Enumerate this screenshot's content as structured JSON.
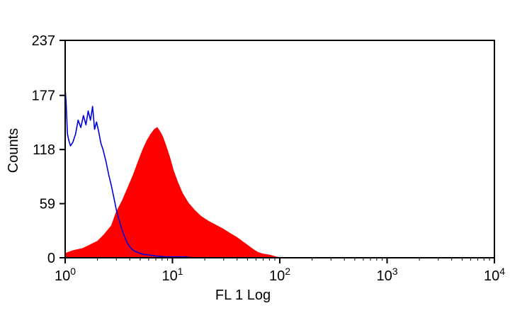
{
  "chart_data": {
    "type": "area",
    "xlabel": "FL 1 Log",
    "ylabel": "Counts",
    "x_scale": "log",
    "xlim": [
      1,
      10000
    ],
    "ylim": [
      0,
      237
    ],
    "y_ticks": [
      {
        "value": 0,
        "label": "0"
      },
      {
        "value": 59,
        "label": "59"
      },
      {
        "value": 118,
        "label": "118"
      },
      {
        "value": 177,
        "label": "177"
      },
      {
        "value": 237,
        "label": "237"
      }
    ],
    "x_ticks": [
      {
        "value": 1,
        "base": "10",
        "exp": "0"
      },
      {
        "value": 10,
        "base": "10",
        "exp": "1"
      },
      {
        "value": 100,
        "base": "10",
        "exp": "2"
      },
      {
        "value": 1000,
        "base": "10",
        "exp": "3"
      },
      {
        "value": 10000,
        "base": "10",
        "exp": "4"
      }
    ],
    "series": [
      {
        "style": "filled",
        "color": "#ff0000",
        "x": [
          1.02,
          1.2,
          1.45,
          1.7,
          2.0,
          2.3,
          2.7,
          3.0,
          3.4,
          3.8,
          4.3,
          4.8,
          5.3,
          5.8,
          6.3,
          6.8,
          7.2,
          7.6,
          8.1,
          8.7,
          9.4,
          10.2,
          11.2,
          12.4,
          14.0,
          16.0,
          18.5,
          21.5,
          25.0,
          29.0,
          34.0,
          40.0,
          47.0,
          55.0,
          62.0,
          70.0,
          80.0,
          92.0,
          102.0
        ],
        "y": [
          5,
          8,
          10,
          14,
          18,
          25,
          35,
          50,
          62,
          75,
          90,
          105,
          118,
          128,
          135,
          140,
          142,
          138,
          132,
          122,
          110,
          95,
          82,
          70,
          60,
          52,
          45,
          40,
          36,
          32,
          27,
          22,
          16,
          10,
          6,
          4,
          3,
          1,
          0
        ]
      },
      {
        "style": "line",
        "color": "#0000dd",
        "x": [
          1.0,
          1.02,
          1.05,
          1.08,
          1.12,
          1.18,
          1.25,
          1.32,
          1.4,
          1.48,
          1.56,
          1.64,
          1.72,
          1.8,
          1.88,
          1.96,
          2.05,
          2.15,
          2.25,
          2.4,
          2.55,
          2.7,
          2.85,
          3.0,
          3.2,
          3.4,
          3.6,
          3.8,
          4.0,
          4.3,
          4.7,
          5.2,
          6.0,
          7.0,
          8.5,
          10.0,
          13.0,
          16.0,
          20.0
        ],
        "y": [
          184,
          170,
          135,
          128,
          122,
          126,
          135,
          150,
          142,
          155,
          145,
          160,
          150,
          165,
          140,
          148,
          138,
          125,
          118,
          105,
          90,
          78,
          65,
          52,
          40,
          30,
          22,
          16,
          12,
          8,
          6,
          4,
          3,
          2,
          1,
          1,
          1,
          0,
          0
        ]
      }
    ]
  }
}
